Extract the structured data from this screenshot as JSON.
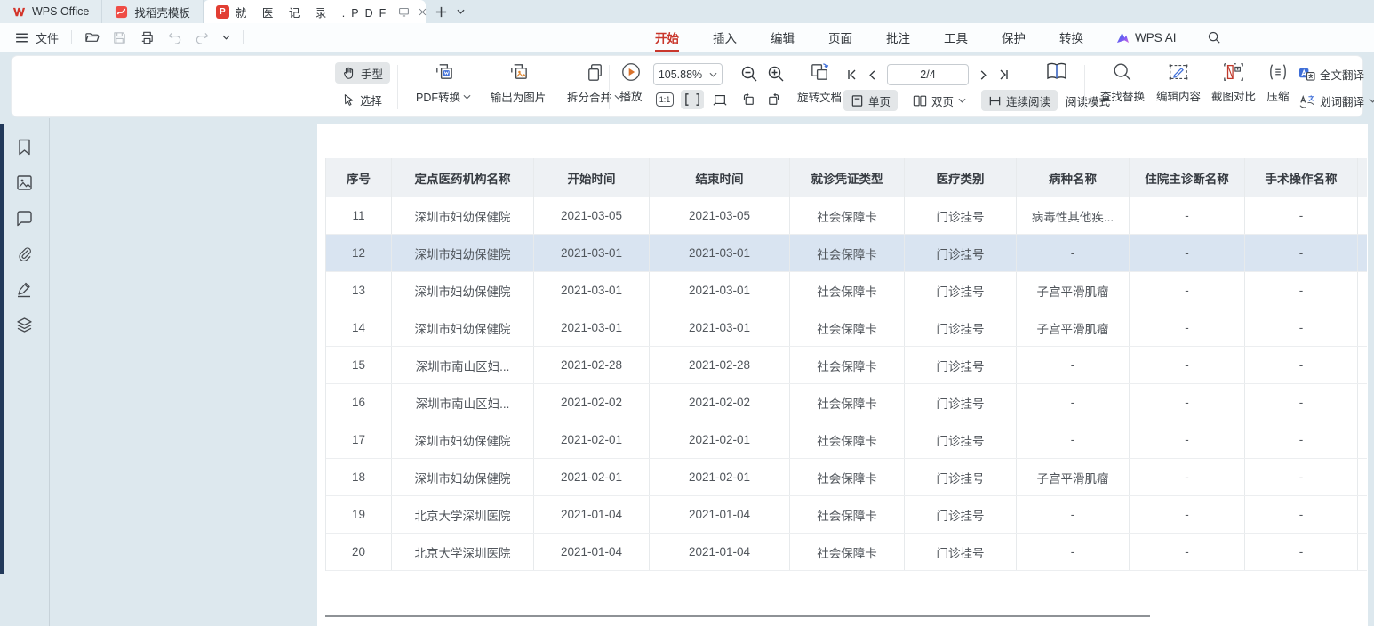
{
  "window": {
    "tabs": [
      {
        "label": "WPS Office"
      },
      {
        "label": "找稻壳模板"
      },
      {
        "label": "就 医 记 录 .PDF",
        "active": true
      }
    ]
  },
  "menu": {
    "hamburger_file": "文件",
    "tabs": [
      "开始",
      "插入",
      "编辑",
      "页面",
      "批注",
      "工具",
      "保护",
      "转换"
    ],
    "active_tab": "开始",
    "ai_label": "WPS AI"
  },
  "toolbar": {
    "hand": "手型",
    "select": "选择",
    "pdf_convert": "PDF转换",
    "export_image": "输出为图片",
    "split_merge": "拆分合并",
    "play": "播放",
    "zoom_value": "105.88%",
    "ratio_label": "1:1",
    "rotate_doc": "旋转文档",
    "page_indicator": "2/4",
    "single_page": "单页",
    "double_page": "双页",
    "continuous_read": "连续阅读",
    "read_mode": "阅读模式",
    "find_replace": "查找替换",
    "edit_content": "编辑内容",
    "screenshot_compare": "截图对比",
    "compress": "压缩",
    "full_translate": "全文翻译",
    "word_translate": "划词翻译"
  },
  "colors": {
    "accent_red": "#c9372c",
    "pdf_icon_red": "#e23e33",
    "highlight_row": "#d9e4f1",
    "header_bg": "#eef1f4",
    "app_bg": "#dde8ee",
    "play_orange": "#d8722c"
  },
  "table": {
    "headers": [
      "序号",
      "定点医药机构名称",
      "开始时间",
      "结束时间",
      "就诊凭证类型",
      "医疗类别",
      "病种名称",
      "住院主诊断名称",
      "手术操作名称"
    ],
    "rows": [
      {
        "cells": [
          "11",
          "深圳市妇幼保健院",
          "2021-03-05",
          "2021-03-05",
          "社会保障卡",
          "门诊挂号",
          "病毒性其他疾...",
          "-",
          "-"
        ],
        "highlighted": false
      },
      {
        "cells": [
          "12",
          "深圳市妇幼保健院",
          "2021-03-01",
          "2021-03-01",
          "社会保障卡",
          "门诊挂号",
          "-",
          "-",
          "-"
        ],
        "highlighted": true
      },
      {
        "cells": [
          "13",
          "深圳市妇幼保健院",
          "2021-03-01",
          "2021-03-01",
          "社会保障卡",
          "门诊挂号",
          "子宫平滑肌瘤",
          "-",
          "-"
        ],
        "highlighted": false
      },
      {
        "cells": [
          "14",
          "深圳市妇幼保健院",
          "2021-03-01",
          "2021-03-01",
          "社会保障卡",
          "门诊挂号",
          "子宫平滑肌瘤",
          "-",
          "-"
        ],
        "highlighted": false
      },
      {
        "cells": [
          "15",
          "深圳市南山区妇...",
          "2021-02-28",
          "2021-02-28",
          "社会保障卡",
          "门诊挂号",
          "-",
          "-",
          "-"
        ],
        "highlighted": false
      },
      {
        "cells": [
          "16",
          "深圳市南山区妇...",
          "2021-02-02",
          "2021-02-02",
          "社会保障卡",
          "门诊挂号",
          "-",
          "-",
          "-"
        ],
        "highlighted": false
      },
      {
        "cells": [
          "17",
          "深圳市妇幼保健院",
          "2021-02-01",
          "2021-02-01",
          "社会保障卡",
          "门诊挂号",
          "-",
          "-",
          "-"
        ],
        "highlighted": false
      },
      {
        "cells": [
          "18",
          "深圳市妇幼保健院",
          "2021-02-01",
          "2021-02-01",
          "社会保障卡",
          "门诊挂号",
          "子宫平滑肌瘤",
          "-",
          "-"
        ],
        "highlighted": false
      },
      {
        "cells": [
          "19",
          "北京大学深圳医院",
          "2021-01-04",
          "2021-01-04",
          "社会保障卡",
          "门诊挂号",
          "-",
          "-",
          "-"
        ],
        "highlighted": false
      },
      {
        "cells": [
          "20",
          "北京大学深圳医院",
          "2021-01-04",
          "2021-01-04",
          "社会保障卡",
          "门诊挂号",
          "-",
          "-",
          "-"
        ],
        "highlighted": false
      }
    ]
  }
}
